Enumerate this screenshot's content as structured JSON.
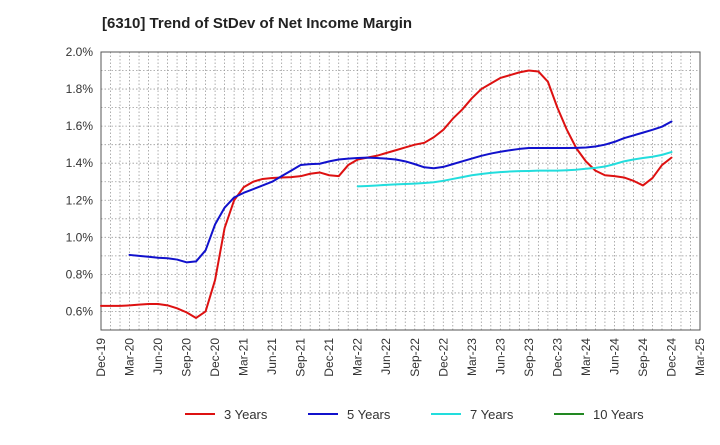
{
  "chart_data": {
    "type": "line",
    "title": "[6310]  Trend of StDev of Net Income Margin",
    "xlabel": "",
    "ylabel": "",
    "ylim": [
      0.5,
      2.0
    ],
    "yticks": [
      0.6,
      0.8,
      1.0,
      1.2,
      1.4,
      1.6,
      1.8,
      2.0
    ],
    "ytick_labels": [
      "0.6%",
      "0.8%",
      "1.0%",
      "1.2%",
      "1.4%",
      "1.6%",
      "1.8%",
      "2.0%"
    ],
    "x_start": "Dec-19",
    "x_end": "Mar-25",
    "xtick_labels": [
      "Dec-19",
      "Mar-20",
      "Jun-20",
      "Sep-20",
      "Dec-20",
      "Mar-21",
      "Jun-21",
      "Sep-21",
      "Dec-21",
      "Mar-22",
      "Jun-22",
      "Sep-22",
      "Dec-22",
      "Mar-23",
      "Jun-23",
      "Sep-23",
      "Dec-23",
      "Mar-24",
      "Jun-24",
      "Sep-24",
      "Dec-24",
      "Mar-25"
    ],
    "grid": true,
    "legend_position": "bottom",
    "series": [
      {
        "name": "3 Years",
        "color": "#dd1111",
        "points": [
          [
            "Dec-19",
            0.63
          ],
          [
            "Jan-20",
            0.63
          ],
          [
            "Feb-20",
            0.63
          ],
          [
            "Mar-20",
            0.633
          ],
          [
            "Apr-20",
            0.637
          ],
          [
            "May-20",
            0.64
          ],
          [
            "Jun-20",
            0.64
          ],
          [
            "Jul-20",
            0.633
          ],
          [
            "Aug-20",
            0.617
          ],
          [
            "Sep-20",
            0.595
          ],
          [
            "Oct-20",
            0.565
          ],
          [
            "Nov-20",
            0.6
          ],
          [
            "Dec-20",
            0.77
          ],
          [
            "Jan-21",
            1.05
          ],
          [
            "Feb-21",
            1.2
          ],
          [
            "Mar-21",
            1.27
          ],
          [
            "Apr-21",
            1.3
          ],
          [
            "May-21",
            1.315
          ],
          [
            "Jun-21",
            1.32
          ],
          [
            "Jul-21",
            1.323
          ],
          [
            "Aug-21",
            1.325
          ],
          [
            "Sep-21",
            1.33
          ],
          [
            "Oct-21",
            1.343
          ],
          [
            "Nov-21",
            1.35
          ],
          [
            "Dec-21",
            1.335
          ],
          [
            "Jan-22",
            1.33
          ],
          [
            "Feb-22",
            1.39
          ],
          [
            "Mar-22",
            1.42
          ],
          [
            "Apr-22",
            1.43
          ],
          [
            "May-22",
            1.44
          ],
          [
            "Jun-22",
            1.455
          ],
          [
            "Jul-22",
            1.47
          ],
          [
            "Aug-22",
            1.485
          ],
          [
            "Sep-22",
            1.5
          ],
          [
            "Oct-22",
            1.51
          ],
          [
            "Nov-22",
            1.54
          ],
          [
            "Dec-22",
            1.58
          ],
          [
            "Jan-23",
            1.64
          ],
          [
            "Feb-23",
            1.69
          ],
          [
            "Mar-23",
            1.75
          ],
          [
            "Apr-23",
            1.8
          ],
          [
            "May-23",
            1.83
          ],
          [
            "Jun-23",
            1.86
          ],
          [
            "Jul-23",
            1.875
          ],
          [
            "Aug-23",
            1.89
          ],
          [
            "Sep-23",
            1.9
          ],
          [
            "Oct-23",
            1.895
          ],
          [
            "Nov-23",
            1.84
          ],
          [
            "Dec-23",
            1.7
          ],
          [
            "Jan-24",
            1.58
          ],
          [
            "Feb-24",
            1.48
          ],
          [
            "Mar-24",
            1.41
          ],
          [
            "Apr-24",
            1.36
          ],
          [
            "May-24",
            1.335
          ],
          [
            "Jun-24",
            1.33
          ],
          [
            "Jul-24",
            1.323
          ],
          [
            "Aug-24",
            1.305
          ],
          [
            "Sep-24",
            1.28
          ],
          [
            "Oct-24",
            1.32
          ],
          [
            "Nov-24",
            1.39
          ],
          [
            "Dec-24",
            1.43
          ]
        ]
      },
      {
        "name": "5 Years",
        "color": "#1111cc",
        "points": [
          [
            "Mar-20",
            0.905
          ],
          [
            "Apr-20",
            0.9
          ],
          [
            "May-20",
            0.895
          ],
          [
            "Jun-20",
            0.89
          ],
          [
            "Jul-20",
            0.887
          ],
          [
            "Aug-20",
            0.88
          ],
          [
            "Sep-20",
            0.865
          ],
          [
            "Oct-20",
            0.87
          ],
          [
            "Nov-20",
            0.93
          ],
          [
            "Dec-20",
            1.07
          ],
          [
            "Jan-21",
            1.16
          ],
          [
            "Feb-21",
            1.215
          ],
          [
            "Mar-21",
            1.24
          ],
          [
            "Apr-21",
            1.26
          ],
          [
            "May-21",
            1.28
          ],
          [
            "Jun-21",
            1.3
          ],
          [
            "Jul-21",
            1.33
          ],
          [
            "Aug-21",
            1.36
          ],
          [
            "Sep-21",
            1.39
          ],
          [
            "Oct-21",
            1.395
          ],
          [
            "Nov-21",
            1.397
          ],
          [
            "Dec-21",
            1.41
          ],
          [
            "Jan-22",
            1.42
          ],
          [
            "Feb-22",
            1.425
          ],
          [
            "Mar-22",
            1.428
          ],
          [
            "Apr-22",
            1.43
          ],
          [
            "May-22",
            1.428
          ],
          [
            "Jun-22",
            1.425
          ],
          [
            "Jul-22",
            1.42
          ],
          [
            "Aug-22",
            1.41
          ],
          [
            "Sep-22",
            1.395
          ],
          [
            "Oct-22",
            1.378
          ],
          [
            "Nov-22",
            1.373
          ],
          [
            "Dec-22",
            1.38
          ],
          [
            "Jan-23",
            1.395
          ],
          [
            "Feb-23",
            1.41
          ],
          [
            "Mar-23",
            1.425
          ],
          [
            "Apr-23",
            1.44
          ],
          [
            "May-23",
            1.452
          ],
          [
            "Jun-23",
            1.462
          ],
          [
            "Jul-23",
            1.47
          ],
          [
            "Aug-23",
            1.477
          ],
          [
            "Sep-23",
            1.482
          ],
          [
            "Oct-23",
            1.482
          ],
          [
            "Nov-23",
            1.482
          ],
          [
            "Dec-23",
            1.482
          ],
          [
            "Jan-24",
            1.482
          ],
          [
            "Feb-24",
            1.483
          ],
          [
            "Mar-24",
            1.485
          ],
          [
            "Apr-24",
            1.49
          ],
          [
            "May-24",
            1.5
          ],
          [
            "Jun-24",
            1.515
          ],
          [
            "Jul-24",
            1.535
          ],
          [
            "Aug-24",
            1.55
          ],
          [
            "Sep-24",
            1.565
          ],
          [
            "Oct-24",
            1.58
          ],
          [
            "Nov-24",
            1.597
          ],
          [
            "Dec-24",
            1.625
          ]
        ]
      },
      {
        "name": "7 Years",
        "color": "#22dddd",
        "points": [
          [
            "Mar-22",
            1.275
          ],
          [
            "Apr-22",
            1.277
          ],
          [
            "May-22",
            1.28
          ],
          [
            "Jun-22",
            1.283
          ],
          [
            "Jul-22",
            1.286
          ],
          [
            "Aug-22",
            1.288
          ],
          [
            "Sep-22",
            1.29
          ],
          [
            "Oct-22",
            1.293
          ],
          [
            "Nov-22",
            1.297
          ],
          [
            "Dec-22",
            1.305
          ],
          [
            "Jan-23",
            1.315
          ],
          [
            "Feb-23",
            1.325
          ],
          [
            "Mar-23",
            1.335
          ],
          [
            "Apr-23",
            1.342
          ],
          [
            "May-23",
            1.348
          ],
          [
            "Jun-23",
            1.352
          ],
          [
            "Jul-23",
            1.355
          ],
          [
            "Aug-23",
            1.357
          ],
          [
            "Sep-23",
            1.358
          ],
          [
            "Oct-23",
            1.36
          ],
          [
            "Nov-23",
            1.36
          ],
          [
            "Dec-23",
            1.36
          ],
          [
            "Jan-24",
            1.362
          ],
          [
            "Feb-24",
            1.365
          ],
          [
            "Mar-24",
            1.37
          ],
          [
            "Apr-24",
            1.375
          ],
          [
            "May-24",
            1.382
          ],
          [
            "Jun-24",
            1.395
          ],
          [
            "Jul-24",
            1.41
          ],
          [
            "Aug-24",
            1.42
          ],
          [
            "Sep-24",
            1.428
          ],
          [
            "Oct-24",
            1.435
          ],
          [
            "Nov-24",
            1.445
          ],
          [
            "Dec-24",
            1.46
          ]
        ]
      },
      {
        "name": "10 Years",
        "color": "#228822",
        "points": []
      }
    ]
  }
}
